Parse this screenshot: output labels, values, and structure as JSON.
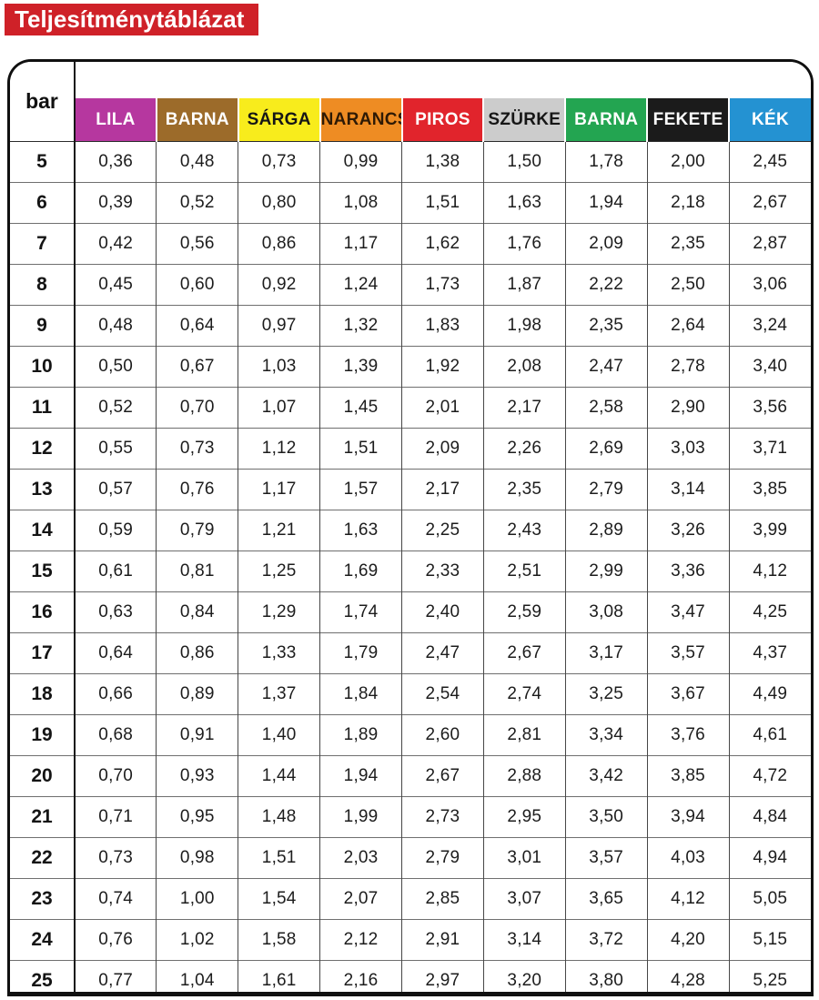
{
  "title": {
    "label": "Teljesítménytáblázat",
    "bg": "#cf2128",
    "fg": "#ffffff"
  },
  "table": {
    "corner_label": "bar",
    "columns": [
      {
        "label": "LILA",
        "bg": "#b6379f",
        "fg": "#ffffff"
      },
      {
        "label": "BARNA",
        "bg": "#9c6b2a",
        "fg": "#ffffff"
      },
      {
        "label": "SÁRGA",
        "bg": "#f8ec1c",
        "fg": "#161616"
      },
      {
        "label": "NARANCS",
        "bg": "#ee8c23",
        "fg": "#2e1a05"
      },
      {
        "label": "PIROS",
        "bg": "#e1242c",
        "fg": "#ffffff"
      },
      {
        "label": "SZÜRKE",
        "bg": "#cccccc",
        "fg": "#161616"
      },
      {
        "label": "BARNA",
        "bg": "#23a551",
        "fg": "#ffffff"
      },
      {
        "label": "FEKETE",
        "bg": "#1b1b1b",
        "fg": "#ffffff"
      },
      {
        "label": "KÉK",
        "bg": "#2492d2",
        "fg": "#ffffff"
      }
    ],
    "rows": [
      {
        "bar": "5",
        "values": [
          "0,36",
          "0,48",
          "0,73",
          "0,99",
          "1,38",
          "1,50",
          "1,78",
          "2,00",
          "2,45"
        ]
      },
      {
        "bar": "6",
        "values": [
          "0,39",
          "0,52",
          "0,80",
          "1,08",
          "1,51",
          "1,63",
          "1,94",
          "2,18",
          "2,67"
        ]
      },
      {
        "bar": "7",
        "values": [
          "0,42",
          "0,56",
          "0,86",
          "1,17",
          "1,62",
          "1,76",
          "2,09",
          "2,35",
          "2,87"
        ]
      },
      {
        "bar": "8",
        "values": [
          "0,45",
          "0,60",
          "0,92",
          "1,24",
          "1,73",
          "1,87",
          "2,22",
          "2,50",
          "3,06"
        ]
      },
      {
        "bar": "9",
        "values": [
          "0,48",
          "0,64",
          "0,97",
          "1,32",
          "1,83",
          "1,98",
          "2,35",
          "2,64",
          "3,24"
        ]
      },
      {
        "bar": "10",
        "values": [
          "0,50",
          "0,67",
          "1,03",
          "1,39",
          "1,92",
          "2,08",
          "2,47",
          "2,78",
          "3,40"
        ]
      },
      {
        "bar": "11",
        "values": [
          "0,52",
          "0,70",
          "1,07",
          "1,45",
          "2,01",
          "2,17",
          "2,58",
          "2,90",
          "3,56"
        ]
      },
      {
        "bar": "12",
        "values": [
          "0,55",
          "0,73",
          "1,12",
          "1,51",
          "2,09",
          "2,26",
          "2,69",
          "3,03",
          "3,71"
        ]
      },
      {
        "bar": "13",
        "values": [
          "0,57",
          "0,76",
          "1,17",
          "1,57",
          "2,17",
          "2,35",
          "2,79",
          "3,14",
          "3,85"
        ]
      },
      {
        "bar": "14",
        "values": [
          "0,59",
          "0,79",
          "1,21",
          "1,63",
          "2,25",
          "2,43",
          "2,89",
          "3,26",
          "3,99"
        ]
      },
      {
        "bar": "15",
        "values": [
          "0,61",
          "0,81",
          "1,25",
          "1,69",
          "2,33",
          "2,51",
          "2,99",
          "3,36",
          "4,12"
        ]
      },
      {
        "bar": "16",
        "values": [
          "0,63",
          "0,84",
          "1,29",
          "1,74",
          "2,40",
          "2,59",
          "3,08",
          "3,47",
          "4,25"
        ]
      },
      {
        "bar": "17",
        "values": [
          "0,64",
          "0,86",
          "1,33",
          "1,79",
          "2,47",
          "2,67",
          "3,17",
          "3,57",
          "4,37"
        ]
      },
      {
        "bar": "18",
        "values": [
          "0,66",
          "0,89",
          "1,37",
          "1,84",
          "2,54",
          "2,74",
          "3,25",
          "3,67",
          "4,49"
        ]
      },
      {
        "bar": "19",
        "values": [
          "0,68",
          "0,91",
          "1,40",
          "1,89",
          "2,60",
          "2,81",
          "3,34",
          "3,76",
          "4,61"
        ]
      },
      {
        "bar": "20",
        "values": [
          "0,70",
          "0,93",
          "1,44",
          "1,94",
          "2,67",
          "2,88",
          "3,42",
          "3,85",
          "4,72"
        ]
      },
      {
        "bar": "21",
        "values": [
          "0,71",
          "0,95",
          "1,48",
          "1,99",
          "2,73",
          "2,95",
          "3,50",
          "3,94",
          "4,84"
        ]
      },
      {
        "bar": "22",
        "values": [
          "0,73",
          "0,98",
          "1,51",
          "2,03",
          "2,79",
          "3,01",
          "3,57",
          "4,03",
          "4,94"
        ]
      },
      {
        "bar": "23",
        "values": [
          "0,74",
          "1,00",
          "1,54",
          "2,07",
          "2,85",
          "3,07",
          "3,65",
          "4,12",
          "5,05"
        ]
      },
      {
        "bar": "24",
        "values": [
          "0,76",
          "1,02",
          "1,58",
          "2,12",
          "2,91",
          "3,14",
          "3,72",
          "4,20",
          "5,15"
        ]
      },
      {
        "bar": "25",
        "values": [
          "0,77",
          "1,04",
          "1,61",
          "2,16",
          "2,97",
          "3,20",
          "3,80",
          "4,28",
          "5,25"
        ]
      }
    ]
  }
}
